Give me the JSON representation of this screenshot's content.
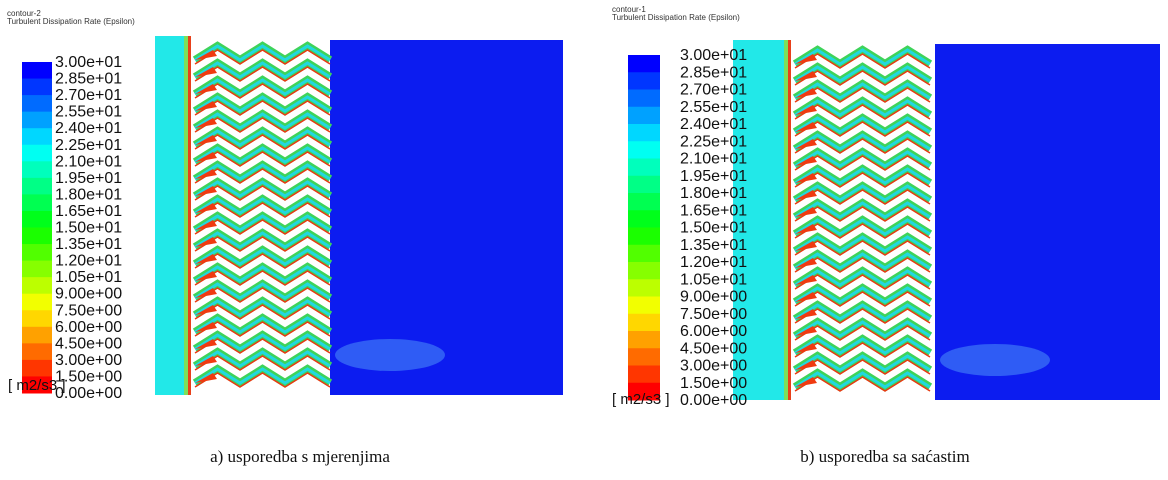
{
  "panels": [
    {
      "contour": "contour-2",
      "variable": "Turbulent Dissipation Rate (Epsilon)",
      "levels": [
        "3.00e+01",
        "2.85e+01",
        "2.70e+01",
        "2.55e+01",
        "2.40e+01",
        "2.25e+01",
        "2.10e+01",
        "1.95e+01",
        "1.80e+01",
        "1.65e+01",
        "1.50e+01",
        "1.35e+01",
        "1.20e+01",
        "1.05e+01",
        "9.00e+00",
        "7.50e+00",
        "6.00e+00",
        "4.50e+00",
        "3.00e+00",
        "1.50e+00",
        "0.00e+00"
      ],
      "unit": "[ m2/s3 ]",
      "caption": "a) usporedba s mjerenjima"
    },
    {
      "contour": "contour-1",
      "variable": "Turbulent Dissipation Rate (Epsilon)",
      "levels": [
        "3.00e+01",
        "2.85e+01",
        "2.70e+01",
        "2.55e+01",
        "2.40e+01",
        "2.25e+01",
        "2.10e+01",
        "1.95e+01",
        "1.80e+01",
        "1.65e+01",
        "1.50e+01",
        "1.35e+01",
        "1.20e+01",
        "1.05e+01",
        "9.00e+00",
        "7.50e+00",
        "6.00e+00",
        "4.50e+00",
        "3.00e+00",
        "1.50e+00",
        "0.00e+00"
      ],
      "unit": "[ m2/s3 ]",
      "caption": "b) usporedba sa saćastim"
    }
  ]
}
